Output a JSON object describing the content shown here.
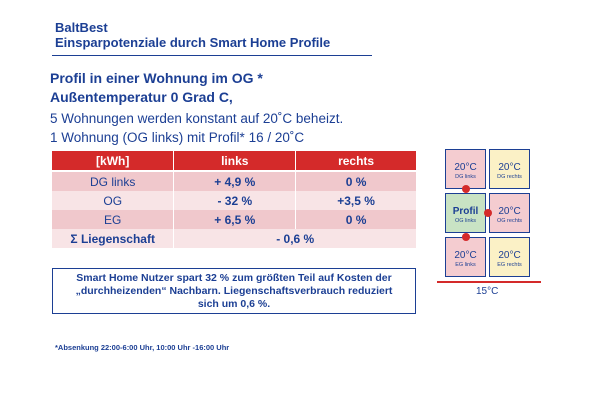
{
  "header": {
    "brand": "BaltBest",
    "subtitle": "Einsparpotenziale durch Smart Home Profile"
  },
  "headings": [
    "Profil in einer Wohnung im OG *",
    "Außentemperatur 0 Grad C,"
  ],
  "body_lines": [
    "5 Wohnungen werden konstant auf 20˚C beheizt.",
    "1 Wohnung (OG links) mit Profil* 16 / 20˚C"
  ],
  "table": {
    "columns": [
      "[kWh]",
      "links",
      "rechts"
    ],
    "rows": [
      {
        "label": "DG links",
        "links": "+ 4,9 %",
        "rechts": "0 %"
      },
      {
        "label": "OG",
        "links": "- 32 %",
        "rechts": "+3,5 %"
      },
      {
        "label": "EG",
        "links": "+ 6,5 %",
        "rechts": "0 %"
      }
    ],
    "total": {
      "label": "Σ Liegenschaft",
      "value": "- 0,6 %"
    }
  },
  "summary": {
    "line1": "Smart Home Nutzer spart 32 % zum größten Teil auf Kosten der",
    "line2": "„durchheizenden“ Nachbarn. Liegenschaftsverbrauch reduziert",
    "line3": "sich um 0,6 %."
  },
  "footnote": "*Absenkung 22:00-6:00 Uhr, 10:00 Uhr -16:00 Uhr",
  "building": {
    "dg_left": {
      "temp": "20°C",
      "caption": "DG links"
    },
    "dg_right": {
      "temp": "20°C",
      "caption": "DG rechts"
    },
    "og_left": {
      "temp": "Profil",
      "caption": "OG links"
    },
    "og_right": {
      "temp": "20°C",
      "caption": "OG rechts"
    },
    "eg_left": {
      "temp": "20°C",
      "caption": "EG links"
    },
    "eg_right": {
      "temp": "20°C",
      "caption": "EG rechts"
    },
    "outside": "15°C",
    "colors": {
      "pink": "#f4ccd0",
      "yellow": "#fbf1c6",
      "green": "#c9e3c4",
      "heat_dot": "#d42a2a"
    }
  },
  "colors": {
    "accent_blue": "#1c3f94",
    "table_header_red": "#d42a2a"
  }
}
